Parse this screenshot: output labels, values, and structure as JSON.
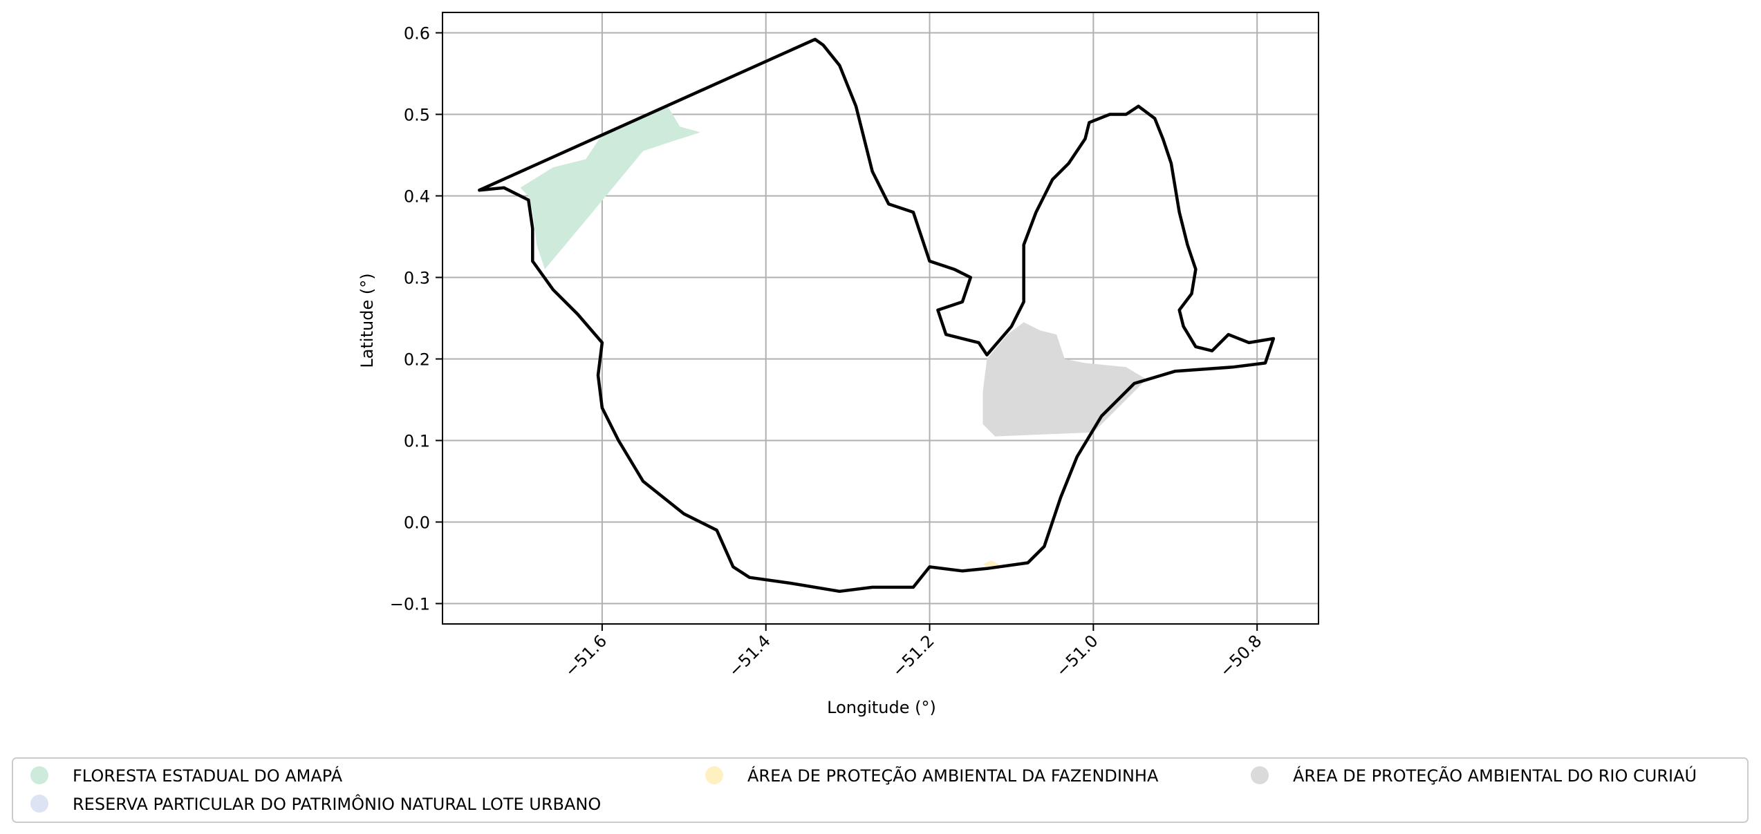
{
  "chart_data": {
    "type": "map",
    "xlabel": "Longitude (°)",
    "ylabel": "Latitude (°)",
    "xlim": [
      -51.795,
      -50.725
    ],
    "ylim": [
      -0.125,
      0.625
    ],
    "xticks": [
      -51.6,
      -51.4,
      -51.2,
      -51.0,
      -50.8
    ],
    "xtick_labels": [
      "−51.6",
      "−51.4",
      "−51.2",
      "−51.0",
      "−50.8"
    ],
    "yticks": [
      -0.1,
      0.0,
      0.1,
      0.2,
      0.3,
      0.4,
      0.5,
      0.6
    ],
    "ytick_labels": [
      "−0.1",
      "0.0",
      "0.1",
      "0.2",
      "0.3",
      "0.4",
      "0.5",
      "0.6"
    ],
    "grid": true,
    "legend_placement": "bottom",
    "boundary": {
      "color": "#000000",
      "points": [
        [
          -51.75,
          0.407
        ],
        [
          -51.34,
          0.592
        ],
        [
          -51.33,
          0.585
        ],
        [
          -51.31,
          0.56
        ],
        [
          -51.29,
          0.51
        ],
        [
          -51.27,
          0.43
        ],
        [
          -51.25,
          0.39
        ],
        [
          -51.22,
          0.38
        ],
        [
          -51.21,
          0.35
        ],
        [
          -51.2,
          0.32
        ],
        [
          -51.17,
          0.31
        ],
        [
          -51.15,
          0.3
        ],
        [
          -51.16,
          0.27
        ],
        [
          -51.19,
          0.26
        ],
        [
          -51.18,
          0.23
        ],
        [
          -51.14,
          0.22
        ],
        [
          -51.13,
          0.205
        ],
        [
          -51.1,
          0.24
        ],
        [
          -51.085,
          0.27
        ],
        [
          -51.085,
          0.34
        ],
        [
          -51.07,
          0.38
        ],
        [
          -51.05,
          0.42
        ],
        [
          -51.03,
          0.44
        ],
        [
          -51.01,
          0.47
        ],
        [
          -51.005,
          0.49
        ],
        [
          -50.98,
          0.5
        ],
        [
          -50.96,
          0.5
        ],
        [
          -50.945,
          0.51
        ],
        [
          -50.925,
          0.495
        ],
        [
          -50.915,
          0.47
        ],
        [
          -50.905,
          0.44
        ],
        [
          -50.895,
          0.38
        ],
        [
          -50.885,
          0.34
        ],
        [
          -50.875,
          0.31
        ],
        [
          -50.88,
          0.28
        ],
        [
          -50.895,
          0.26
        ],
        [
          -50.89,
          0.24
        ],
        [
          -50.875,
          0.215
        ],
        [
          -50.855,
          0.21
        ],
        [
          -50.835,
          0.23
        ],
        [
          -50.81,
          0.22
        ],
        [
          -50.78,
          0.225
        ],
        [
          -50.79,
          0.195
        ],
        [
          -50.83,
          0.19
        ],
        [
          -50.9,
          0.185
        ],
        [
          -50.95,
          0.17
        ],
        [
          -50.99,
          0.13
        ],
        [
          -51.02,
          0.08
        ],
        [
          -51.04,
          0.03
        ],
        [
          -51.06,
          -0.03
        ],
        [
          -51.08,
          -0.05
        ],
        [
          -51.13,
          -0.057
        ],
        [
          -51.16,
          -0.06
        ],
        [
          -51.2,
          -0.055
        ],
        [
          -51.22,
          -0.08
        ],
        [
          -51.27,
          -0.08
        ],
        [
          -51.31,
          -0.085
        ],
        [
          -51.37,
          -0.075
        ],
        [
          -51.42,
          -0.068
        ],
        [
          -51.44,
          -0.055
        ],
        [
          -51.46,
          -0.01
        ],
        [
          -51.5,
          0.01
        ],
        [
          -51.55,
          0.05
        ],
        [
          -51.58,
          0.1
        ],
        [
          -51.6,
          0.14
        ],
        [
          -51.605,
          0.18
        ],
        [
          -51.6,
          0.22
        ],
        [
          -51.63,
          0.255
        ],
        [
          -51.66,
          0.285
        ],
        [
          -51.685,
          0.32
        ],
        [
          -51.685,
          0.36
        ],
        [
          -51.69,
          0.395
        ],
        [
          -51.72,
          0.41
        ],
        [
          -51.75,
          0.407
        ]
      ]
    },
    "areas": [
      {
        "color": "#cdeadb",
        "points": [
          [
            -51.7,
            0.41
          ],
          [
            -51.66,
            0.435
          ],
          [
            -51.62,
            0.445
          ],
          [
            -51.6,
            0.475
          ],
          [
            -51.565,
            0.49
          ],
          [
            -51.52,
            0.51
          ],
          [
            -51.505,
            0.485
          ],
          [
            -51.48,
            0.478
          ],
          [
            -51.52,
            0.465
          ],
          [
            -51.55,
            0.455
          ],
          [
            -51.62,
            0.37
          ],
          [
            -51.67,
            0.31
          ],
          [
            -51.68,
            0.34
          ],
          [
            -51.685,
            0.38
          ],
          [
            -51.69,
            0.4
          ]
        ]
      },
      {
        "color": "#dadada",
        "points": [
          [
            -51.13,
            0.2
          ],
          [
            -51.105,
            0.23
          ],
          [
            -51.085,
            0.245
          ],
          [
            -51.065,
            0.235
          ],
          [
            -51.045,
            0.23
          ],
          [
            -51.035,
            0.2
          ],
          [
            -51.01,
            0.195
          ],
          [
            -50.96,
            0.19
          ],
          [
            -50.935,
            0.175
          ],
          [
            -50.96,
            0.15
          ],
          [
            -51.0,
            0.11
          ],
          [
            -51.12,
            0.105
          ],
          [
            -51.135,
            0.12
          ],
          [
            -51.135,
            0.16
          ]
        ]
      },
      {
        "color": "#fff0c2",
        "points": [
          [
            -51.135,
            -0.052
          ],
          [
            -51.125,
            -0.047
          ],
          [
            -51.115,
            -0.052
          ],
          [
            -51.125,
            -0.057
          ]
        ]
      }
    ],
    "legend": [
      {
        "label": "FLORESTA ESTADUAL DO AMAPÁ",
        "color": "#cdeadb"
      },
      {
        "label": "RESERVA PARTICULAR DO PATRIMÔNIO NATURAL LOTE URBANO",
        "color": "#dce3f3"
      },
      {
        "label": "ÁREA DE PROTEÇÃO AMBIENTAL DA FAZENDINHA",
        "color": "#fff0c2"
      },
      {
        "label": "ÁREA DE PROTEÇÃO AMBIENTAL DO RIO CURIAÚ",
        "color": "#dadada"
      }
    ]
  }
}
